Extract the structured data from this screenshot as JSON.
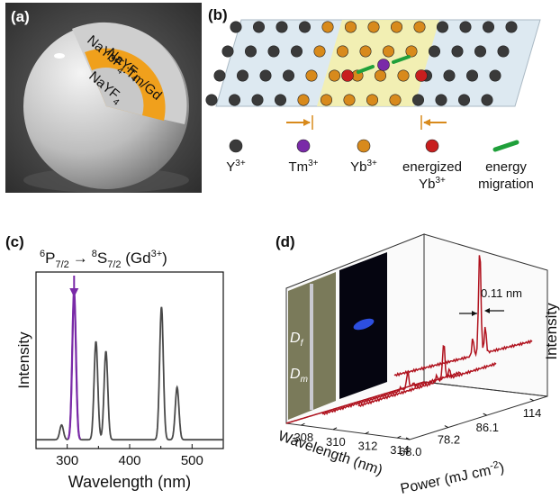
{
  "panel_a": {
    "label": "(a)",
    "shells": {
      "outer": "NaYF",
      "outer_sub": "4",
      "middle": "NaYbF",
      "middle_sub": "4",
      "middle_suffix": ":Tm/Gd",
      "inner": "NaYF",
      "inner_sub": "4"
    }
  },
  "panel_b": {
    "label": "(b)",
    "legend": [
      {
        "text": "Y",
        "sup": "3+",
        "color": "#3a3a3a"
      },
      {
        "text": "Tm",
        "sup": "3+",
        "color": "#7a2aa8"
      },
      {
        "text": "Yb",
        "sup": "3+",
        "color": "#d88a1c"
      },
      {
        "text": "energized",
        "text2": "Yb",
        "sup": "3+",
        "color": "#c81e1e"
      },
      {
        "text": "energy",
        "text2": "migration",
        "color": "#1fa03a"
      }
    ]
  },
  "panel_c": {
    "label": "(c)",
    "transition": {
      "a": "6",
      "b": "P",
      "b_sub": "7/2",
      "arrow": "→",
      "c": "8",
      "d": "S",
      "d_sub": "7/2",
      "e": " (Gd",
      "e_sup": "3+",
      "f": ")"
    },
    "chart_data": {
      "type": "line",
      "xlabel": "Wavelength (nm)",
      "ylabel": "Intensity",
      "xlim": [
        250,
        550
      ],
      "xticks": [
        "300",
        "400",
        "500"
      ],
      "peaks": [
        {
          "x": 291,
          "y": 0.09
        },
        {
          "x": 311,
          "y": 0.9,
          "highlight": true
        },
        {
          "x": 346,
          "y": 0.6
        },
        {
          "x": 362,
          "y": 0.54
        },
        {
          "x": 451,
          "y": 0.81
        },
        {
          "x": 476,
          "y": 0.32
        }
      ]
    }
  },
  "panel_d": {
    "label": "(d)",
    "inset": {
      "df": "D",
      "df_sub": "f",
      "dm": "D",
      "dm_sub": "m"
    },
    "linewidth": "0.11 nm",
    "chart_data": {
      "type": "line",
      "xlabel": "Wavelength (nm)",
      "ylabel": "Power (mJ cm",
      "ylabel_sup": "-2",
      "ylabel_end": ")",
      "zlabel": "Intensity",
      "wavelength_ticks": [
        "308",
        "310",
        "312",
        "314"
      ],
      "power_ticks": [
        "68.0",
        "78.2",
        "86.1",
        "114"
      ],
      "series_powers": [
        68.0,
        78.2,
        86.1,
        114
      ]
    }
  }
}
